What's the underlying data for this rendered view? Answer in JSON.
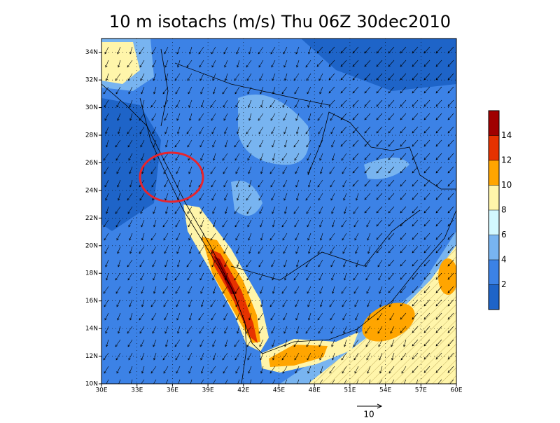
{
  "chart_data": {
    "type": "contour",
    "title": "10 m isotachs (m/s) Thu 06Z 30dec2010",
    "xlim": [
      30,
      60
    ],
    "ylim": [
      10,
      35
    ],
    "xticks": [
      {
        "value": 30,
        "label": "30E"
      },
      {
        "value": 33,
        "label": "33E"
      },
      {
        "value": 36,
        "label": "36E"
      },
      {
        "value": 39,
        "label": "39E"
      },
      {
        "value": 42,
        "label": "42E"
      },
      {
        "value": 45,
        "label": "45E"
      },
      {
        "value": 48,
        "label": "48E"
      },
      {
        "value": 51,
        "label": "51E"
      },
      {
        "value": 54,
        "label": "54E"
      },
      {
        "value": 57,
        "label": "57E"
      },
      {
        "value": 60,
        "label": "60E"
      }
    ],
    "yticks": [
      {
        "value": 10,
        "label": "10N"
      },
      {
        "value": 12,
        "label": "12N"
      },
      {
        "value": 14,
        "label": "14N"
      },
      {
        "value": 16,
        "label": "16N"
      },
      {
        "value": 18,
        "label": "18N"
      },
      {
        "value": 20,
        "label": "20N"
      },
      {
        "value": 22,
        "label": "22N"
      },
      {
        "value": 24,
        "label": "24N"
      },
      {
        "value": 26,
        "label": "26N"
      },
      {
        "value": 28,
        "label": "28N"
      },
      {
        "value": 30,
        "label": "30N"
      },
      {
        "value": 32,
        "label": "32N"
      },
      {
        "value": 34,
        "label": "34N"
      }
    ],
    "colorbar": {
      "levels": [
        2,
        4,
        6,
        8,
        10,
        12,
        14
      ],
      "colors": [
        "#1e64c8",
        "#3c82e6",
        "#78b4f0",
        "#d2f8ff",
        "#fff5aa",
        "#ffa500",
        "#e63200",
        "#a00000"
      ]
    },
    "reference_vector": 10
  }
}
